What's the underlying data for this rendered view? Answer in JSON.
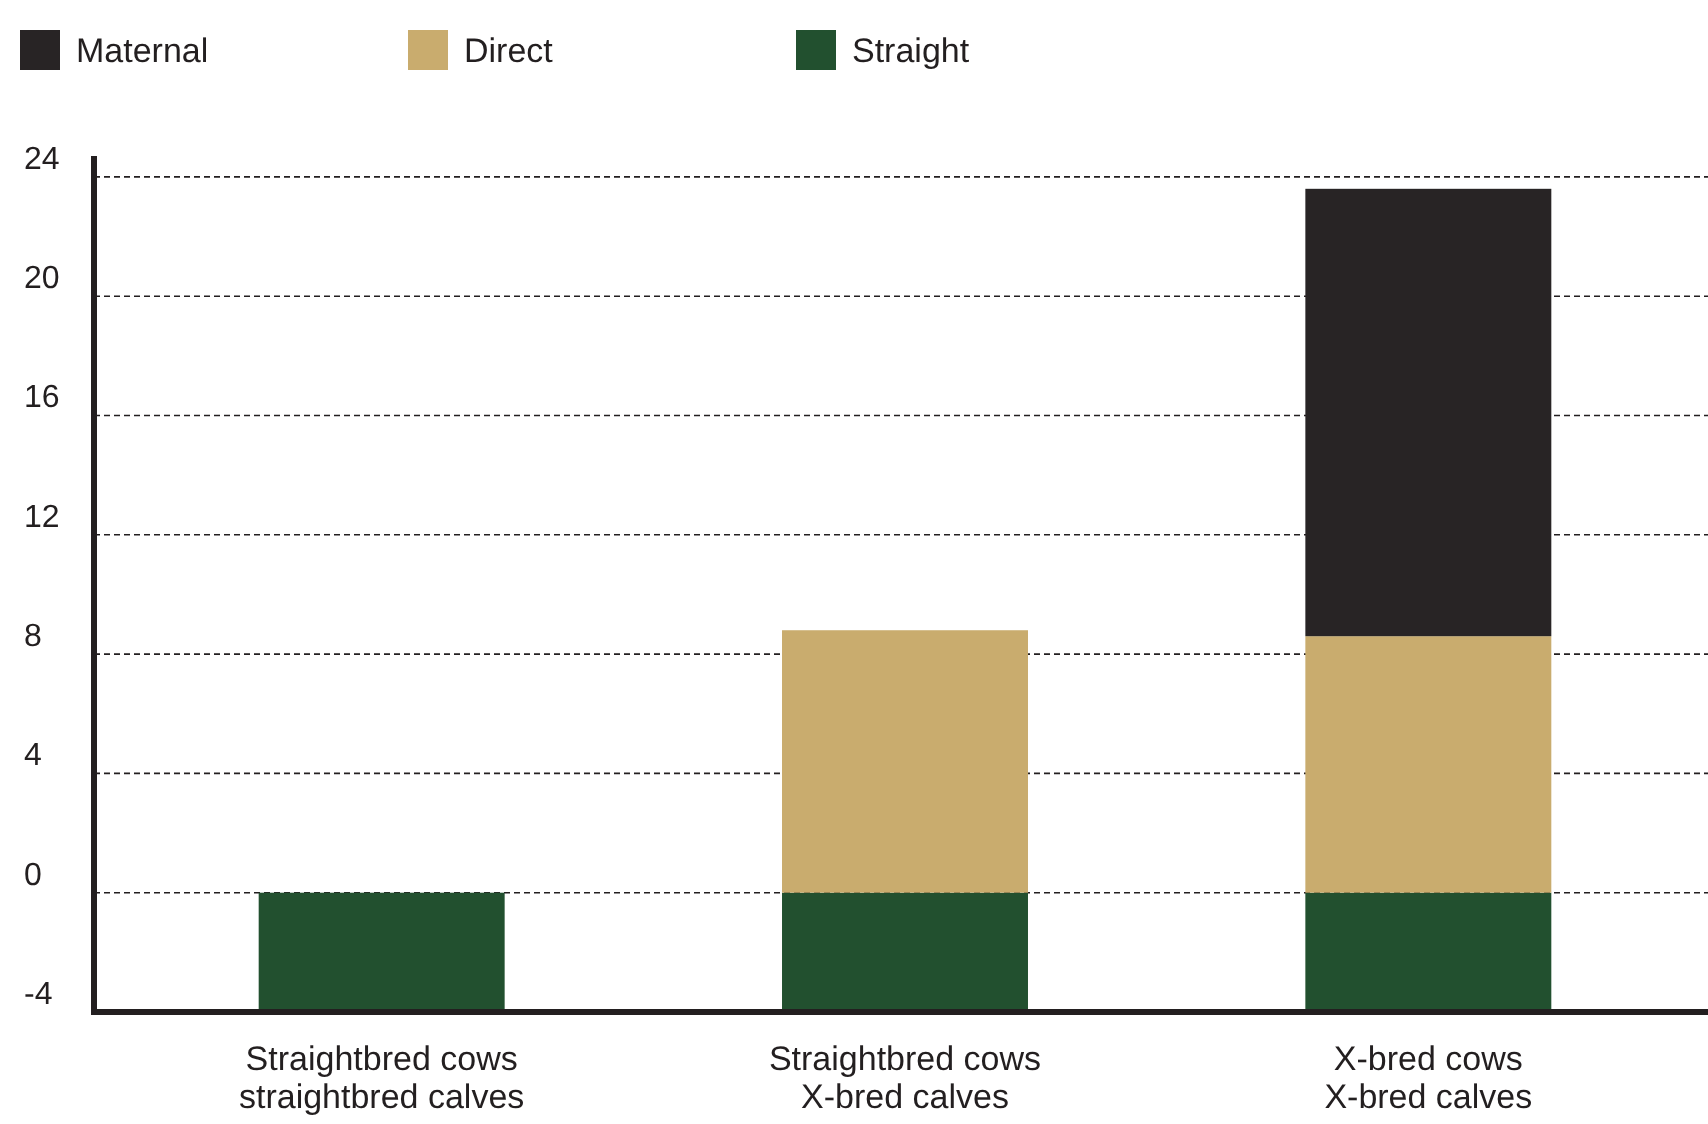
{
  "chart_data": {
    "type": "bar",
    "stacked": true,
    "categories": [
      "Straightbred cows\nstraightbred calves",
      "Straightbred cows\nX-bred calves",
      "X-bred cows\nX-bred calves"
    ],
    "series": [
      {
        "name": "Straight",
        "color": "#22502f",
        "values": [
          -4,
          -4,
          -4
        ]
      },
      {
        "name": "Direct",
        "color": "#c9ac6e",
        "values": [
          0,
          8.8,
          8.6
        ]
      },
      {
        "name": "Maternal",
        "color": "#282425",
        "values": [
          0,
          0,
          15
        ]
      }
    ],
    "ylim": [
      -4,
      24.7
    ],
    "yticks": [
      -4,
      0,
      4,
      8,
      12,
      16,
      20,
      24
    ],
    "grid": "y",
    "legend": "top left"
  }
}
